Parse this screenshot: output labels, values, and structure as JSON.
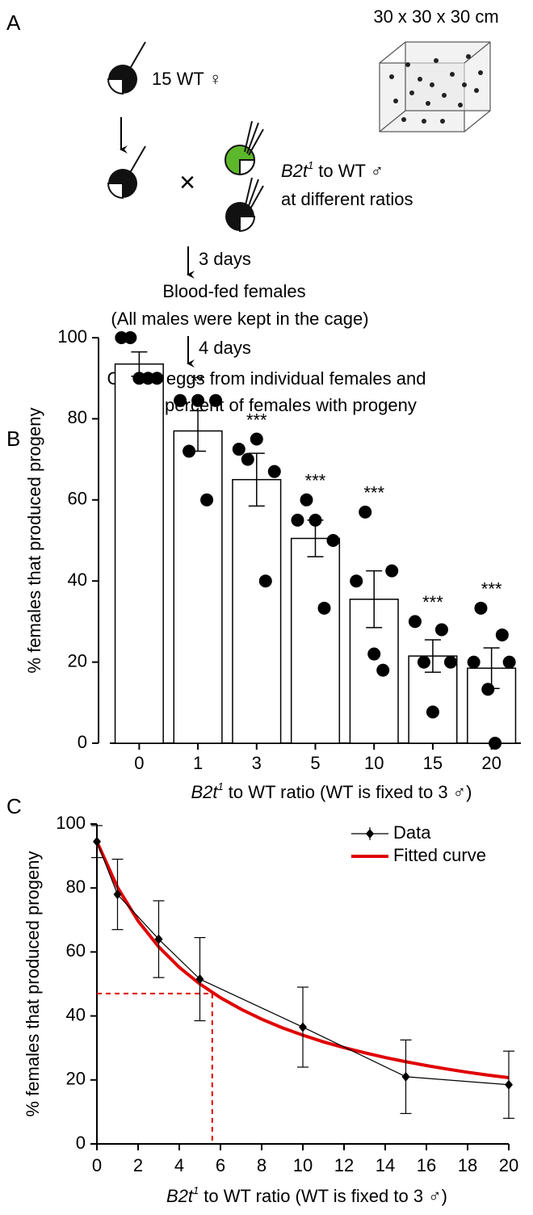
{
  "panel_a": {
    "panel": "A",
    "cage_size": "30 x 30 x 30 cm",
    "females": "15 WT ♀",
    "males": {
      "gene": "B2t",
      "allele": "1",
      "text": "to WT ♂"
    },
    "ratios": "at different ratios",
    "step1": "3 days",
    "result1": "Blood-fed females",
    "result1_note": "(All males were kept in the cage)",
    "step2": "4 days",
    "result2_line1": "Collect eggs from individual females and",
    "result2_line2": "score percent of females with progeny"
  },
  "chart_data": [
    {
      "type": "bar",
      "panel": "B",
      "ylabel": "% females that produced progeny",
      "xlabel": {
        "gene": "B2t",
        "allele": "1",
        "text": "to WT ratio (WT is fixed to 3 ♂)"
      },
      "categories": [
        "0",
        "1",
        "3",
        "5",
        "10",
        "15",
        "20"
      ],
      "values": [
        93.5,
        77,
        65,
        50.5,
        35.5,
        21.5,
        18.5
      ],
      "errors": [
        3,
        5,
        6.5,
        4.5,
        7,
        4,
        5
      ],
      "points": [
        [
          100,
          100,
          90,
          90,
          90
        ],
        [
          84.5,
          72,
          84.5,
          60,
          84.5
        ],
        [
          72.5,
          70,
          75,
          40,
          67
        ],
        [
          55,
          60,
          55,
          33.3,
          50
        ],
        [
          40,
          57,
          22,
          18,
          42.5
        ],
        [
          30,
          20,
          7.7,
          28,
          20
        ],
        [
          20,
          33.3,
          13.3,
          0,
          26.7,
          20
        ]
      ],
      "annotations": [
        null,
        "**",
        "***",
        "***",
        "***",
        "***",
        "***"
      ],
      "color": "#ffffff",
      "ylim": [
        0,
        100
      ],
      "yticks": [
        0,
        20,
        40,
        60,
        80,
        100
      ]
    },
    {
      "type": "line",
      "panel": "C",
      "ylabel": "% females that produced progeny",
      "xlabel": {
        "gene": "B2t",
        "allele": "1",
        "text": "to WT ratio (WT is fixed to 3 ♂)"
      },
      "series": [
        {
          "name": "Data",
          "color": "#000000",
          "x": [
            0,
            1,
            3,
            5,
            10,
            15,
            20
          ],
          "values": [
            94.5,
            78,
            64,
            51.5,
            36.5,
            21,
            18.5
          ],
          "errors": [
            5,
            11,
            12,
            13,
            12.5,
            11.5,
            10.5
          ]
        },
        {
          "name": "Fitted curve",
          "color": "#e00000",
          "x": [
            0,
            1,
            2,
            3,
            4,
            5,
            6,
            7,
            8,
            9,
            10,
            11,
            12,
            13,
            14,
            15,
            16,
            17,
            18,
            19,
            20
          ],
          "values": [
            94.5,
            80.2,
            69.7,
            61.6,
            55.2,
            50.0,
            45.7,
            42.1,
            39.0,
            36.3,
            34.0,
            31.9,
            30.1,
            28.5,
            27.0,
            25.7,
            24.5,
            23.4,
            22.4,
            21.5,
            20.7
          ]
        }
      ],
      "reference": {
        "x": 5.6,
        "y": 47
      },
      "legend": "upper right",
      "xlim": [
        0,
        20
      ],
      "xticks": [
        0,
        2,
        4,
        6,
        8,
        10,
        12,
        14,
        16,
        18,
        20
      ],
      "ylim": [
        0,
        100
      ],
      "yticks": [
        0,
        20,
        40,
        60,
        80,
        100
      ]
    }
  ]
}
